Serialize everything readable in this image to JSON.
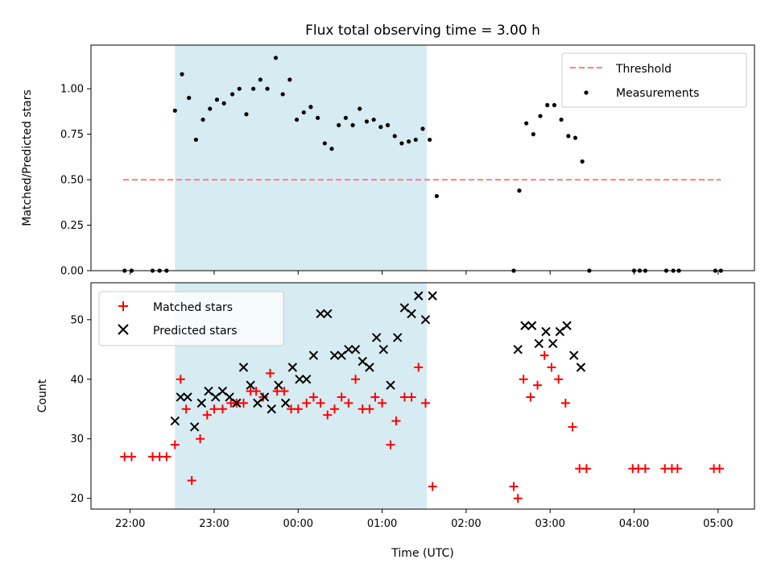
{
  "figure": {
    "title": "Flux total observing time = 3.00 h"
  },
  "colors": {
    "threshold": "#ff7f7f",
    "measurements": "#000000",
    "matched": "#ff0000",
    "predicted": "#000000",
    "highlight": "#add8e6"
  },
  "chart_data": [
    {
      "type": "scatter",
      "ylabel": "Matched/Predicted stars",
      "xlabel": "",
      "xlim": [
        "21:32",
        "05:26"
      ],
      "ylim": [
        0,
        1.24
      ],
      "y_ticks": [
        0.0,
        0.25,
        0.5,
        0.75,
        1.0
      ],
      "y_tick_labels": [
        "0.00",
        "0.25",
        "0.50",
        "0.75",
        "1.00"
      ],
      "highlight_span": [
        "22:32",
        "01:32"
      ],
      "legend": {
        "placement": "top-right",
        "entries": [
          "Threshold",
          "Measurements"
        ]
      },
      "threshold": {
        "name": "Threshold",
        "y": 0.5,
        "x_range": [
          "21:55",
          "05:02"
        ],
        "style": "dashed"
      },
      "series": [
        {
          "name": "Measurements",
          "points": [
            [
              "21:56",
              0
            ],
            [
              "22:01",
              0
            ],
            [
              "22:16",
              0
            ],
            [
              "22:21",
              0
            ],
            [
              "22:26",
              0
            ],
            [
              "22:32",
              0.88
            ],
            [
              "22:37",
              1.08
            ],
            [
              "22:42",
              0.95
            ],
            [
              "22:47",
              0.72
            ],
            [
              "22:52",
              0.83
            ],
            [
              "22:57",
              0.89
            ],
            [
              "23:02",
              0.94
            ],
            [
              "23:07",
              0.92
            ],
            [
              "23:13",
              0.97
            ],
            [
              "23:18",
              1.0
            ],
            [
              "23:23",
              0.86
            ],
            [
              "23:28",
              1.0
            ],
            [
              "23:33",
              1.05
            ],
            [
              "23:38",
              1.0
            ],
            [
              "23:44",
              1.17
            ],
            [
              "23:49",
              0.97
            ],
            [
              "23:54",
              1.05
            ],
            [
              "23:59",
              0.83
            ],
            [
              "00:04",
              0.87
            ],
            [
              "00:09",
              0.9
            ],
            [
              "00:14",
              0.84
            ],
            [
              "00:19",
              0.7
            ],
            [
              "00:24",
              0.67
            ],
            [
              "00:29",
              0.8
            ],
            [
              "00:34",
              0.84
            ],
            [
              "00:39",
              0.8
            ],
            [
              "00:44",
              0.89
            ],
            [
              "00:49",
              0.82
            ],
            [
              "00:54",
              0.83
            ],
            [
              "00:59",
              0.79
            ],
            [
              "01:04",
              0.8
            ],
            [
              "01:09",
              0.74
            ],
            [
              "01:14",
              0.7
            ],
            [
              "01:19",
              0.71
            ],
            [
              "01:24",
              0.72
            ],
            [
              "01:29",
              0.78
            ],
            [
              "01:34",
              0.72
            ],
            [
              "01:39",
              0.41
            ],
            [
              "02:34",
              0
            ],
            [
              "02:38",
              0.44
            ],
            [
              "02:43",
              0.81
            ],
            [
              "02:48",
              0.75
            ],
            [
              "02:53",
              0.85
            ],
            [
              "02:58",
              0.91
            ],
            [
              "03:03",
              0.91
            ],
            [
              "03:08",
              0.83
            ],
            [
              "03:13",
              0.74
            ],
            [
              "03:18",
              0.73
            ],
            [
              "03:23",
              0.6
            ],
            [
              "03:28",
              0
            ],
            [
              "04:00",
              0
            ],
            [
              "04:04",
              0
            ],
            [
              "04:08",
              0
            ],
            [
              "04:23",
              0
            ],
            [
              "04:28",
              0
            ],
            [
              "04:32",
              0
            ],
            [
              "04:58",
              0
            ],
            [
              "05:02",
              0
            ]
          ]
        }
      ]
    },
    {
      "type": "scatter",
      "ylabel": "Count",
      "xlabel": "Time (UTC)",
      "xlim": [
        "21:32",
        "05:26"
      ],
      "ylim": [
        18.2,
        56.2
      ],
      "y_ticks": [
        20,
        30,
        40,
        50
      ],
      "x_ticks": [
        "22:00",
        "23:00",
        "00:00",
        "01:00",
        "02:00",
        "03:00",
        "04:00",
        "05:00"
      ],
      "highlight_span": [
        "22:32",
        "01:32"
      ],
      "legend": {
        "placement": "top-left",
        "entries": [
          "Matched stars",
          "Predicted stars"
        ]
      },
      "series": [
        {
          "name": "Matched stars",
          "marker": "+",
          "points": [
            [
              "21:56",
              27
            ],
            [
              "22:01",
              27
            ],
            [
              "22:16",
              27
            ],
            [
              "22:21",
              27
            ],
            [
              "22:26",
              27
            ],
            [
              "22:32",
              29
            ],
            [
              "22:36",
              40
            ],
            [
              "22:40",
              35
            ],
            [
              "22:44",
              23
            ],
            [
              "22:50",
              30
            ],
            [
              "22:55",
              34
            ],
            [
              "23:00",
              35
            ],
            [
              "23:06",
              35
            ],
            [
              "23:12",
              36
            ],
            [
              "23:16",
              36
            ],
            [
              "23:21",
              36
            ],
            [
              "23:26",
              38
            ],
            [
              "23:30",
              38
            ],
            [
              "23:35",
              37
            ],
            [
              "23:40",
              41
            ],
            [
              "23:45",
              38
            ],
            [
              "23:50",
              38
            ],
            [
              "23:55",
              35
            ],
            [
              "00:00",
              35
            ],
            [
              "00:06",
              36
            ],
            [
              "00:11",
              37
            ],
            [
              "00:16",
              36
            ],
            [
              "00:21",
              34
            ],
            [
              "00:26",
              35
            ],
            [
              "00:31",
              37
            ],
            [
              "00:36",
              36
            ],
            [
              "00:41",
              40
            ],
            [
              "00:46",
              35
            ],
            [
              "00:51",
              35
            ],
            [
              "00:55",
              37
            ],
            [
              "01:00",
              36
            ],
            [
              "01:06",
              29
            ],
            [
              "01:10",
              33
            ],
            [
              "01:16",
              37
            ],
            [
              "01:21",
              37
            ],
            [
              "01:26",
              42
            ],
            [
              "01:31",
              36
            ],
            [
              "01:36",
              22
            ],
            [
              "02:34",
              22
            ],
            [
              "02:37",
              20
            ],
            [
              "02:41",
              40
            ],
            [
              "02:46",
              37
            ],
            [
              "02:51",
              39
            ],
            [
              "02:56",
              44
            ],
            [
              "03:01",
              42
            ],
            [
              "03:06",
              40
            ],
            [
              "03:11",
              36
            ],
            [
              "03:16",
              32
            ],
            [
              "03:21",
              25
            ],
            [
              "03:26",
              25
            ],
            [
              "03:59",
              25
            ],
            [
              "04:03",
              25
            ],
            [
              "04:08",
              25
            ],
            [
              "04:22",
              25
            ],
            [
              "04:27",
              25
            ],
            [
              "04:31",
              25
            ],
            [
              "04:57",
              25
            ],
            [
              "05:01",
              25
            ]
          ]
        },
        {
          "name": "Predicted stars",
          "marker": "x",
          "points": [
            [
              "22:32",
              33
            ],
            [
              "22:36",
              37
            ],
            [
              "22:41",
              37
            ],
            [
              "22:46",
              32
            ],
            [
              "22:51",
              36
            ],
            [
              "22:56",
              38
            ],
            [
              "23:01",
              37
            ],
            [
              "23:06",
              38
            ],
            [
              "23:11",
              37
            ],
            [
              "23:16",
              36
            ],
            [
              "23:21",
              42
            ],
            [
              "23:26",
              39
            ],
            [
              "23:31",
              36
            ],
            [
              "23:36",
              37
            ],
            [
              "23:41",
              35
            ],
            [
              "23:46",
              39
            ],
            [
              "23:51",
              36
            ],
            [
              "23:56",
              42
            ],
            [
              "00:01",
              40
            ],
            [
              "00:06",
              40
            ],
            [
              "00:11",
              44
            ],
            [
              "00:16",
              51
            ],
            [
              "00:21",
              51
            ],
            [
              "00:26",
              44
            ],
            [
              "00:31",
              44
            ],
            [
              "00:36",
              45
            ],
            [
              "00:41",
              45
            ],
            [
              "00:46",
              43
            ],
            [
              "00:51",
              42
            ],
            [
              "00:56",
              47
            ],
            [
              "01:01",
              45
            ],
            [
              "01:06",
              39
            ],
            [
              "01:11",
              47
            ],
            [
              "01:16",
              52
            ],
            [
              "01:21",
              51
            ],
            [
              "01:26",
              54
            ],
            [
              "01:31",
              50
            ],
            [
              "01:36",
              54
            ],
            [
              "02:37",
              45
            ],
            [
              "02:42",
              49
            ],
            [
              "02:47",
              49
            ],
            [
              "02:52",
              46
            ],
            [
              "02:57",
              48
            ],
            [
              "03:02",
              46
            ],
            [
              "03:07",
              48
            ],
            [
              "03:12",
              49
            ],
            [
              "03:17",
              44
            ],
            [
              "03:22",
              42
            ]
          ]
        }
      ]
    }
  ]
}
